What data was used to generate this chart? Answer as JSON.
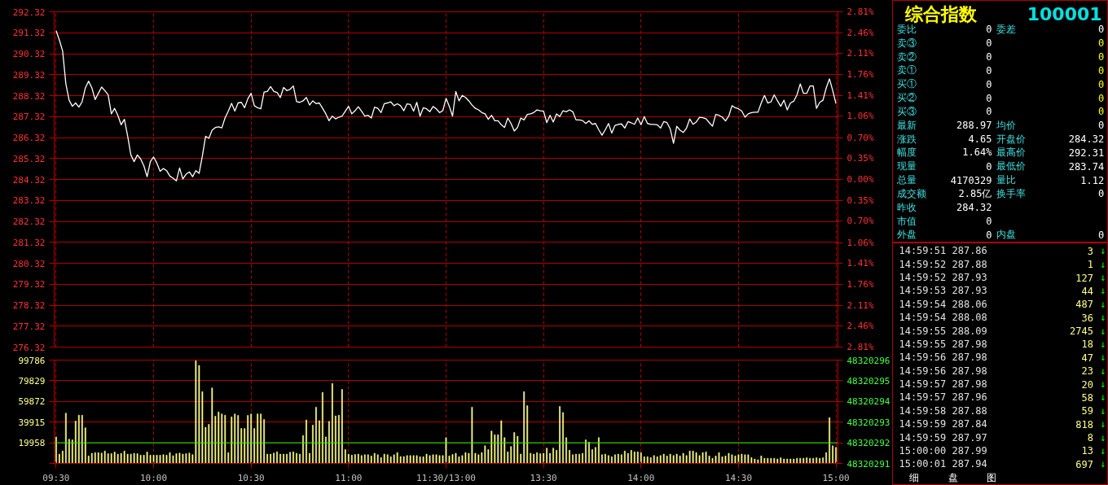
{
  "chart_data": [
    {
      "type": "line",
      "categories": [
        null,
        null,
        null,
        null,
        null,
        null,
        null,
        null,
        null,
        null,
        null,
        null,
        null,
        null,
        null,
        null,
        null,
        null,
        null,
        null,
        null,
        null,
        null,
        null,
        null,
        null,
        null,
        null,
        null,
        null,
        null,
        null,
        null,
        null,
        null,
        null,
        null,
        null,
        null,
        null,
        null,
        null,
        null,
        null,
        null,
        null,
        null,
        null,
        null,
        null,
        null,
        null,
        null,
        null,
        null,
        null,
        null,
        null,
        null,
        null,
        null,
        null,
        null,
        null,
        null,
        null,
        null,
        null,
        null,
        null,
        null,
        null,
        null,
        null,
        null,
        null,
        null,
        null,
        null,
        null,
        null,
        null,
        null,
        null,
        null,
        null,
        null,
        null,
        null,
        null,
        null,
        null,
        null,
        null,
        null,
        null,
        null,
        null,
        null,
        null,
        null,
        null,
        null,
        null,
        null,
        null,
        null,
        null,
        null,
        null,
        null,
        null,
        null,
        null,
        null,
        null,
        null,
        null,
        null,
        null,
        null,
        null,
        null,
        null,
        null,
        null,
        null,
        null,
        null,
        null,
        null,
        null,
        null,
        null,
        null,
        null,
        null,
        null,
        null,
        null,
        null,
        null,
        null,
        null,
        null,
        null,
        null,
        null,
        null,
        null,
        null,
        null,
        null,
        null,
        null,
        null,
        null,
        null,
        null,
        null,
        null,
        null,
        null,
        null,
        null,
        null,
        null,
        null,
        null,
        null,
        null,
        null,
        null,
        null,
        null,
        null,
        null,
        null,
        null,
        null,
        null,
        null,
        null,
        null,
        null,
        null,
        null,
        null,
        null,
        null,
        null,
        null,
        null,
        null,
        null,
        null,
        null,
        null,
        null,
        null,
        null,
        null,
        null,
        null,
        null,
        null,
        null,
        null,
        null,
        null,
        null,
        null,
        null,
        null,
        null,
        null,
        null,
        null,
        null,
        null,
        null,
        null,
        null,
        null,
        null,
        null,
        null,
        null,
        null,
        null,
        null,
        null,
        null,
        null,
        null,
        null,
        null,
        null,
        null,
        null,
        null
      ],
      "series": [
        {
          "color": "#ffffff",
          "values": [
            291.42,
            290.97,
            290.45,
            288.88,
            288.1,
            287.81,
            287.97,
            287.77,
            288.03,
            288.69,
            289.01,
            288.69,
            288.13,
            288.43,
            288.73,
            288.56,
            288.36,
            287.45,
            287.71,
            287.38,
            286.93,
            287.19,
            286.4,
            285.49,
            285.17,
            285.49,
            285.3,
            284.97,
            284.45,
            285.17,
            285.39,
            285.1,
            284.71,
            284.84,
            284.74,
            284.48,
            284.38,
            284.25,
            284.87,
            284.34,
            284.57,
            284.68,
            284.45,
            284.74,
            284.61,
            285.43,
            286.38,
            286.28,
            286.67,
            286.8,
            286.83,
            286.78,
            287.26,
            287.58,
            287.95,
            287.58,
            287.97,
            288.0,
            287.74,
            288.17,
            288.43,
            287.84,
            287.74,
            287.69,
            288.49,
            288.52,
            288.75,
            288.52,
            288.47,
            288.23,
            288.71,
            288.56,
            288.62,
            288.78,
            288.03,
            288.0,
            288.07,
            288.23,
            287.87,
            288.07,
            287.94,
            287.97,
            287.71,
            287.45,
            287.12,
            287.34,
            287.21,
            287.29,
            287.34,
            287.58,
            287.81,
            287.45,
            287.6,
            287.79,
            287.58,
            287.34,
            287.38,
            287.25,
            287.77,
            287.71,
            287.51,
            287.94,
            287.97,
            288.02,
            287.84,
            287.93,
            287.84,
            287.6,
            287.93,
            287.9,
            287.58,
            288.0,
            287.34,
            287.74,
            287.69,
            287.55,
            287.8,
            287.69,
            287.51,
            287.6,
            288.19,
            287.81,
            287.34,
            288.52,
            288.07,
            288.33,
            288.23,
            288.07,
            287.87,
            287.71,
            287.64,
            287.51,
            287.45,
            287.19,
            287.38,
            287.12,
            287.12,
            286.93,
            286.8,
            287.25,
            286.99,
            286.63,
            286.8,
            287.25,
            287.16,
            287.42,
            287.45,
            287.51,
            287.64,
            287.6,
            287.58,
            287.03,
            287.38,
            287.06,
            287.45,
            287.32,
            287.6,
            287.55,
            287.64,
            287.55,
            287.16,
            287.16,
            287.13,
            286.99,
            287.12,
            286.95,
            286.99,
            286.69,
            286.43,
            286.69,
            286.99,
            286.53,
            286.9,
            286.95,
            286.97,
            286.77,
            287.08,
            287.02,
            286.95,
            287.25,
            286.93,
            287.32,
            286.99,
            286.95,
            286.95,
            286.93,
            286.77,
            287.08,
            287.03,
            286.73,
            286.04,
            286.86,
            286.67,
            286.56,
            286.77,
            287.21,
            286.95,
            287.06,
            287.29,
            287.27,
            287.22,
            287.03,
            286.86,
            287.42,
            287.38,
            287.29,
            287.11,
            287.34,
            287.84,
            287.74,
            287.69,
            287.58,
            287.29,
            287.45,
            287.51,
            287.53,
            287.53,
            287.97,
            288.33,
            287.97,
            288.02,
            288.36,
            288.07,
            287.81,
            288.1,
            287.64,
            287.97,
            288.05,
            288.36,
            288.88,
            288.43,
            288.43,
            288.78,
            288.78,
            287.71,
            288.0,
            288.1,
            288.69,
            289.12,
            288.56,
            287.94
          ]
        }
      ],
      "ylim": [
        276.32,
        292.32
      ],
      "yticks": [
        276.32,
        277.32,
        278.32,
        279.32,
        280.32,
        281.32,
        282.32,
        283.32,
        284.32,
        285.32,
        286.32,
        287.32,
        288.32,
        289.32,
        290.32,
        291.32,
        292.32
      ],
      "y2lim": [
        -2.81,
        2.81
      ],
      "y2ticks": [
        {
          "value": -2.81,
          "label": "2.81%"
        },
        {
          "value": -2.46,
          "label": "2.46%"
        },
        {
          "value": -2.11,
          "label": "2.11%"
        },
        {
          "value": -1.76,
          "label": "1.76%"
        },
        {
          "value": -1.41,
          "label": "1.41%"
        },
        {
          "value": -1.06,
          "label": "1.06%"
        },
        {
          "value": -0.7,
          "label": "0.70%"
        },
        {
          "value": -0.35,
          "label": "0.35%"
        },
        {
          "value": 0,
          "label": "0.00%"
        },
        {
          "value": 0.35,
          "label": "0.35%"
        },
        {
          "value": 0.7,
          "label": "0.70%"
        },
        {
          "value": 1.06,
          "label": "1.06%"
        },
        {
          "value": 1.41,
          "label": "1.41%"
        },
        {
          "value": 1.76,
          "label": "1.76%"
        },
        {
          "value": 2.11,
          "label": "2.11%"
        },
        {
          "value": 2.46,
          "label": "2.46%"
        },
        {
          "value": 2.81,
          "label": "2.81%"
        }
      ],
      "grid": true,
      "tick_labels": "y",
      "line_style": "solid"
    },
    {
      "type": "bar",
      "categories": [
        "09:30",
        null,
        null,
        null,
        null,
        null,
        null,
        null,
        null,
        null,
        null,
        null,
        null,
        null,
        null,
        null,
        null,
        null,
        null,
        null,
        null,
        null,
        null,
        null,
        null,
        null,
        null,
        null,
        null,
        null,
        "10:00",
        null,
        null,
        null,
        null,
        null,
        null,
        null,
        null,
        null,
        null,
        null,
        null,
        null,
        null,
        null,
        null,
        null,
        null,
        null,
        null,
        null,
        null,
        null,
        null,
        null,
        null,
        null,
        null,
        null,
        "10:30",
        null,
        null,
        null,
        null,
        null,
        null,
        null,
        null,
        null,
        null,
        null,
        null,
        null,
        null,
        null,
        null,
        null,
        null,
        null,
        null,
        null,
        null,
        null,
        null,
        null,
        null,
        null,
        null,
        null,
        "11:00",
        null,
        null,
        null,
        null,
        null,
        null,
        null,
        null,
        null,
        null,
        null,
        null,
        null,
        null,
        null,
        null,
        null,
        null,
        null,
        null,
        null,
        null,
        null,
        null,
        null,
        null,
        null,
        null,
        null,
        "11:30/13:00",
        null,
        null,
        null,
        null,
        null,
        null,
        null,
        null,
        null,
        null,
        null,
        null,
        null,
        null,
        null,
        null,
        null,
        null,
        null,
        null,
        null,
        null,
        null,
        null,
        null,
        null,
        null,
        null,
        null,
        "13:30",
        null,
        null,
        null,
        null,
        null,
        null,
        null,
        null,
        null,
        null,
        null,
        null,
        null,
        null,
        null,
        null,
        null,
        null,
        null,
        null,
        null,
        null,
        null,
        null,
        null,
        null,
        null,
        null,
        null,
        "14:00",
        null,
        null,
        null,
        null,
        null,
        null,
        null,
        null,
        null,
        null,
        null,
        null,
        null,
        null,
        null,
        null,
        null,
        null,
        null,
        null,
        null,
        null,
        null,
        null,
        null,
        null,
        null,
        null,
        null,
        "14:30",
        null,
        null,
        null,
        null,
        null,
        null,
        null,
        null,
        null,
        null,
        null,
        null,
        null,
        null,
        null,
        null,
        null,
        null,
        null,
        null,
        null,
        null,
        null,
        null,
        null,
        null,
        null,
        null,
        null,
        "15:00"
      ],
      "series": [
        {
          "color": "#ffff88",
          "values": [
            25600,
            9000,
            12000,
            48500,
            23400,
            22700,
            40900,
            46600,
            46600,
            34400,
            7200,
            9800,
            10500,
            10500,
            10000,
            12000,
            9500,
            9500,
            11000,
            9000,
            9800,
            12000,
            9000,
            9000,
            9800,
            9500,
            8000,
            8000,
            11000,
            8000,
            8000,
            8000,
            8000,
            8500,
            8000,
            10500,
            7500,
            9500,
            10000,
            9000,
            9500,
            10000,
            8500,
            99200,
            94600,
            69300,
            34900,
            37800,
            72900,
            45600,
            49700,
            47800,
            46600,
            10500,
            44900,
            47800,
            46400,
            33700,
            33700,
            46400,
            47800,
            33700,
            47800,
            47800,
            42500,
            9000,
            9000,
            10000,
            11200,
            9000,
            9000,
            9000,
            10800,
            11200,
            9800,
            9000,
            27000,
            42000,
            9800,
            37000,
            54300,
            41300,
            68600,
            25600,
            40600,
            77200,
            45900,
            46600,
            71500,
            13400,
            9000,
            8000,
            8600,
            9000,
            7600,
            8400,
            8400,
            7200,
            9800,
            8400,
            5700,
            9000,
            8400,
            6500,
            8400,
            10500,
            6700,
            6700,
            7600,
            7600,
            7600,
            7600,
            6500,
            6500,
            9000,
            7600,
            8400,
            8400,
            7600,
            7600,
            24900,
            7200,
            8600,
            9800,
            6500,
            7600,
            10500,
            9800,
            54300,
            9800,
            8400,
            10500,
            17000,
            13400,
            31300,
            27700,
            27700,
            41300,
            24900,
            11200,
            16300,
            29900,
            26300,
            9100,
            69300,
            55700,
            9800,
            9000,
            10500,
            9500,
            9800,
            14800,
            9800,
            14800,
            12700,
            55000,
            49200,
            24900,
            12700,
            8400,
            9000,
            9000,
            9800,
            22700,
            20600,
            13400,
            15500,
            24900,
            8400,
            9000,
            7600,
            6500,
            8400,
            9000,
            8400,
            12000,
            9800,
            12700,
            11200,
            11200,
            10500,
            6500,
            6500,
            5700,
            7600,
            6500,
            7600,
            9000,
            7200,
            9000,
            7600,
            9000,
            7200,
            9800,
            7600,
            12000,
            12000,
            10500,
            7600,
            10500,
            11200,
            7200,
            5000,
            7200,
            10500,
            6500,
            7200,
            9800,
            8400,
            7200,
            8400,
            9000,
            8400,
            8400,
            5700,
            4300,
            3600,
            7200,
            5000,
            5000,
            5000,
            5000,
            4300,
            5500,
            4300,
            4300,
            4300,
            4300,
            5000,
            5000,
            5000,
            5500,
            5000,
            5000,
            5500,
            5000,
            5500,
            10500,
            44200,
            17000,
            15500
          ]
        }
      ],
      "ylim": [
        0,
        99786
      ],
      "yticks": [
        {
          "value": 0,
          "label": null
        },
        19958,
        39915,
        59872,
        79829,
        99786
      ],
      "y2lim": [
        48320291,
        48320296
      ],
      "y2ticks": [
        48320291,
        48320292,
        48320293,
        48320294,
        48320295,
        48320296
      ],
      "ref_lines": [
        {
          "axis": "y",
          "value": 19958,
          "color": "#00ff00"
        }
      ],
      "grid": true
    },
    {
      "type": "other",
      "title": "综合指数 100001",
      "annotations": [
        "委比 0 委差 0",
        "卖③ 0 0",
        "卖② 0 0",
        "卖① 0 0",
        "买① 0 0",
        "买② 0 0",
        "买③ 0 0",
        "最新 288.97 均价 0",
        "涨跌 4.65 开盘价 284.32",
        "幅度 1.64% 最高价 292.31",
        "现量 0 最低价 283.74",
        "总量 4170329 量比 1.12",
        "成交额 2.85亿 换手率 0",
        "昨收 284.32",
        "市值 0",
        "外盘 0 内盘 0"
      ]
    },
    {
      "type": "other",
      "annotations": [
        "14:59:51 287.86 3 ↓",
        "14:59:52 287.88 1 ↓",
        "14:59:52 287.93 127 ↓",
        "14:59:53 287.93 44 ↓",
        "14:59:54 288.06 487 ↓",
        "14:59:54 288.08 36 ↓",
        "14:59:55 288.09 2745 ↓",
        "14:59:55 287.98 18 ↓",
        "14:59:56 287.98 47 ↓",
        "14:59:56 287.98 23 ↓",
        "14:59:57 287.98 20 ↓",
        "14:59:57 287.96 58 ↓",
        "14:59:58 287.88 59 ↓",
        "14:59:59 287.84 818 ↓",
        "14:59:59 287.97 8 ↓",
        "15:00:00 287.99 13 ↓",
        "15:00:01 287.94 697 ↓",
        "细 盘 图"
      ]
    }
  ]
}
